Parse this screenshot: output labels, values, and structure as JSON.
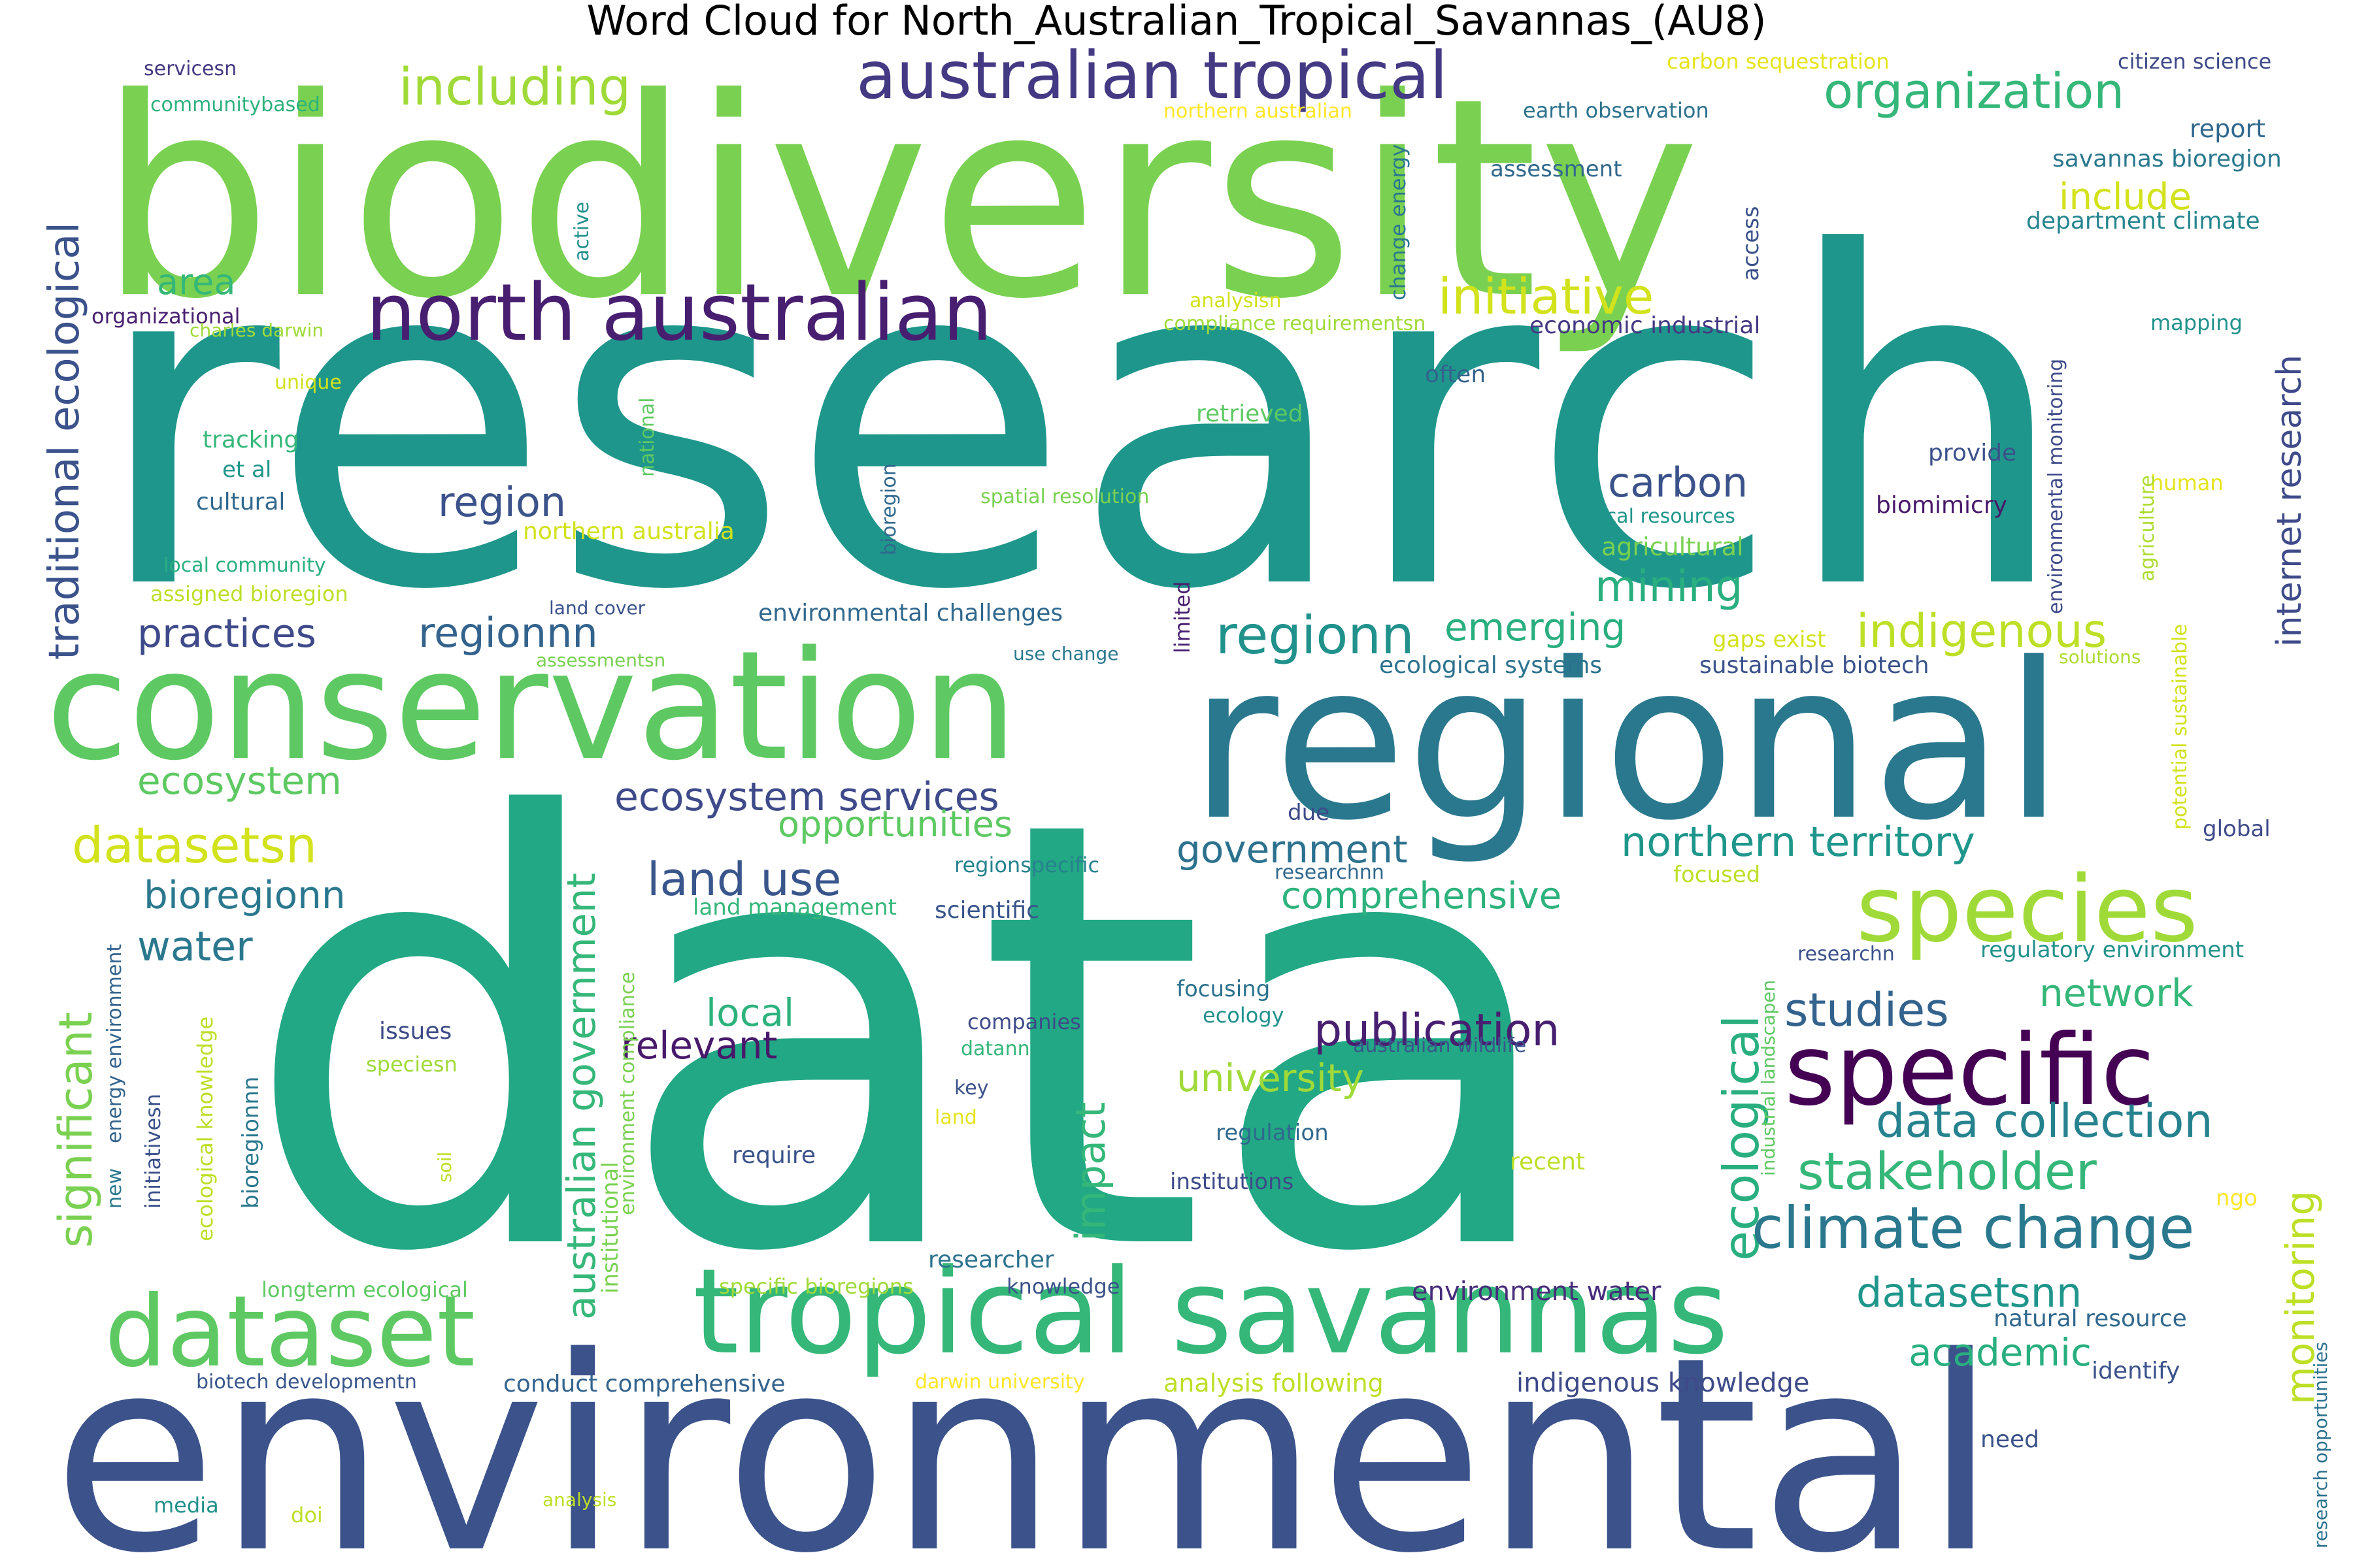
{
  "title": "Word Cloud for North_Australian_Tropical_Savannas_(AU8)",
  "words": [
    {
      "text": "data",
      "color": "#22a884"
    },
    {
      "text": "research",
      "color": "#1f968b"
    },
    {
      "text": "environmental",
      "color": "#3b528b"
    },
    {
      "text": "biodiversity",
      "color": "#7ad151"
    },
    {
      "text": "regional",
      "color": "#2a788e"
    },
    {
      "text": "conservation",
      "color": "#5ec962"
    },
    {
      "text": "tropical savannas",
      "color": "#35b779"
    },
    {
      "text": "specific",
      "color": "#440154"
    },
    {
      "text": "dataset",
      "color": "#5ec962"
    },
    {
      "text": "species",
      "color": "#a0da39"
    },
    {
      "text": "north australian",
      "color": "#481f70"
    },
    {
      "text": "australian tropical",
      "color": "#443983"
    },
    {
      "text": "ecological",
      "color": "#29af7f"
    },
    {
      "text": "climate change",
      "color": "#2a788e"
    },
    {
      "text": "traditional ecological",
      "color": "#3b528b"
    },
    {
      "text": "australian government",
      "color": "#35b779"
    },
    {
      "text": "significant",
      "color": "#7ad151"
    },
    {
      "text": "monitoring",
      "color": "#bddf26"
    },
    {
      "text": "impact",
      "color": "#35b779"
    },
    {
      "text": "stakeholder",
      "color": "#35b779"
    },
    {
      "text": "publication",
      "color": "#481f70"
    },
    {
      "text": "data collection",
      "color": "#26828e"
    },
    {
      "text": "including",
      "color": "#a0da39"
    },
    {
      "text": "organization",
      "color": "#35b779"
    },
    {
      "text": "initiative",
      "color": "#d2e21b"
    },
    {
      "text": "regionn",
      "color": "#21918c"
    },
    {
      "text": "indigenous",
      "color": "#bddf26"
    },
    {
      "text": "datasetsn",
      "color": "#d2e21b"
    },
    {
      "text": "datasetsnn",
      "color": "#1f968b"
    },
    {
      "text": "studies",
      "color": "#33638d"
    },
    {
      "text": "ecosystem services",
      "color": "#3e4a89"
    },
    {
      "text": "northern territory",
      "color": "#1f968b"
    },
    {
      "text": "land use",
      "color": "#39568c"
    },
    {
      "text": "internet research",
      "color": "#3e4a89"
    },
    {
      "text": "mining",
      "color": "#29af7f"
    },
    {
      "text": "carbon",
      "color": "#3b528b"
    },
    {
      "text": "region",
      "color": "#3b528b"
    },
    {
      "text": "regionnn",
      "color": "#33638d"
    },
    {
      "text": "practices",
      "color": "#3e4a89"
    },
    {
      "text": "emerging",
      "color": "#29af7f"
    },
    {
      "text": "government",
      "color": "#2c728e"
    },
    {
      "text": "comprehensive",
      "color": "#2db27d"
    },
    {
      "text": "opportunities",
      "color": "#5ec962"
    },
    {
      "text": "bioregionn",
      "color": "#2a788e"
    },
    {
      "text": "ecosystem",
      "color": "#5ec962"
    },
    {
      "text": "water",
      "color": "#2a788e"
    },
    {
      "text": "local",
      "color": "#2db27d"
    },
    {
      "text": "relevant",
      "color": "#48186a"
    },
    {
      "text": "university",
      "color": "#a0da39"
    },
    {
      "text": "network",
      "color": "#35b779"
    },
    {
      "text": "academic",
      "color": "#29af7f"
    },
    {
      "text": "area",
      "color": "#35b779"
    },
    {
      "text": "include",
      "color": "#d2e21b"
    },
    {
      "text": "environment water",
      "color": "#472d7b"
    },
    {
      "text": "indigenous knowledge",
      "color": "#3e4a89"
    },
    {
      "text": "conduct comprehensive",
      "color": "#33638d"
    },
    {
      "text": "analysis following",
      "color": "#bddf26"
    },
    {
      "text": "specific bioregions",
      "color": "#a0da39"
    },
    {
      "text": "natural resource",
      "color": "#31688e"
    },
    {
      "text": "servicesn",
      "color": "#443983"
    },
    {
      "text": "communitybased",
      "color": "#2db27d"
    },
    {
      "text": "organizational",
      "color": "#481f70"
    },
    {
      "text": "charles darwin",
      "color": "#a0da39"
    },
    {
      "text": "unique",
      "color": "#d2e21b"
    },
    {
      "text": "tracking",
      "color": "#35b779"
    },
    {
      "text": "et al",
      "color": "#1f968b"
    },
    {
      "text": "cultural",
      "color": "#31688e"
    },
    {
      "text": "local community",
      "color": "#29af7f"
    },
    {
      "text": "assigned bioregion",
      "color": "#bddf26"
    },
    {
      "text": "land cover",
      "color": "#3b528b"
    },
    {
      "text": "assessmentsn",
      "color": "#7ad151"
    },
    {
      "text": "use change",
      "color": "#2a788e"
    },
    {
      "text": "environmental challenges",
      "color": "#31688e"
    },
    {
      "text": "ecological systems",
      "color": "#2c728e"
    },
    {
      "text": "sustainable biotech",
      "color": "#3b528b"
    },
    {
      "text": "gaps exist",
      "color": "#d2e21b"
    },
    {
      "text": "solutions",
      "color": "#addc30"
    },
    {
      "text": "carbon sequestration",
      "color": "#e5e419"
    },
    {
      "text": "citizen science",
      "color": "#3e4a89"
    },
    {
      "text": "northern australian",
      "color": "#fde725"
    },
    {
      "text": "earth observation",
      "color": "#2c728e"
    },
    {
      "text": "report",
      "color": "#31688e"
    },
    {
      "text": "savannas bioregion",
      "color": "#2a788e"
    },
    {
      "text": "assessment",
      "color": "#31688e"
    },
    {
      "text": "department climate",
      "color": "#25858e"
    },
    {
      "text": "analysisn",
      "color": "#d2e21b"
    },
    {
      "text": "compliance requirementsn",
      "color": "#a0da39"
    },
    {
      "text": "economic industrial",
      "color": "#443983"
    },
    {
      "text": "mapping",
      "color": "#21918c"
    },
    {
      "text": "often",
      "color": "#33638d"
    },
    {
      "text": "retrieved",
      "color": "#5ec962"
    },
    {
      "text": "provide",
      "color": "#3b528b"
    },
    {
      "text": "human",
      "color": "#e5e419"
    },
    {
      "text": "spatial resolution",
      "color": "#7ad151"
    },
    {
      "text": "local resources",
      "color": "#1f968b"
    },
    {
      "text": "biomimicry",
      "color": "#48186a"
    },
    {
      "text": "agricultural",
      "color": "#7ad151"
    },
    {
      "text": "northern australia",
      "color": "#d2e21b"
    },
    {
      "text": "global",
      "color": "#3e4a89"
    },
    {
      "text": "due",
      "color": "#3e4a89"
    },
    {
      "text": "regionspecific",
      "color": "#26828e"
    },
    {
      "text": "researchnn",
      "color": "#31688e"
    },
    {
      "text": "focused",
      "color": "#bddf26"
    },
    {
      "text": "land management",
      "color": "#35b779"
    },
    {
      "text": "scientific",
      "color": "#39568c"
    },
    {
      "text": "researchn",
      "color": "#3b528b"
    },
    {
      "text": "regulatory environment",
      "color": "#21918c"
    },
    {
      "text": "focusing",
      "color": "#2c728e"
    },
    {
      "text": "ecology",
      "color": "#21918c"
    },
    {
      "text": "companies",
      "color": "#3e4a89"
    },
    {
      "text": "datann",
      "color": "#35b779"
    },
    {
      "text": "australian wildlife",
      "color": "#39568c"
    },
    {
      "text": "issues",
      "color": "#3e4a89"
    },
    {
      "text": "speciesn",
      "color": "#a0da39"
    },
    {
      "text": "key",
      "color": "#3b528b"
    },
    {
      "text": "land",
      "color": "#e5e419"
    },
    {
      "text": "regulation",
      "color": "#31688e"
    },
    {
      "text": "require",
      "color": "#3b528b"
    },
    {
      "text": "recent",
      "color": "#bddf26"
    },
    {
      "text": "institutions",
      "color": "#3e4a89"
    },
    {
      "text": "ngo",
      "color": "#fde725"
    },
    {
      "text": "researcher",
      "color": "#2c728e"
    },
    {
      "text": "knowledge",
      "color": "#3b528b"
    },
    {
      "text": "longterm ecological",
      "color": "#5ec962"
    },
    {
      "text": "biotech developmentn",
      "color": "#39568c"
    },
    {
      "text": "darwin university",
      "color": "#fde725"
    },
    {
      "text": "identify",
      "color": "#3b528b"
    },
    {
      "text": "need",
      "color": "#3b528b"
    },
    {
      "text": "media",
      "color": "#21918c"
    },
    {
      "text": "doi",
      "color": "#bddf26"
    },
    {
      "text": "analysis",
      "color": "#bddf26"
    },
    {
      "text": "new",
      "color": "#2a788e"
    },
    {
      "text": "energy environment",
      "color": "#33638d"
    },
    {
      "text": "ecological knowledge",
      "color": "#bddf26"
    },
    {
      "text": "bioregionnn",
      "color": "#2a788e"
    },
    {
      "text": "initiativesn",
      "color": "#3b528b"
    },
    {
      "text": "soil",
      "color": "#bddf26"
    },
    {
      "text": "institutional",
      "color": "#7ad151"
    },
    {
      "text": "environment compliance",
      "color": "#7ad151"
    },
    {
      "text": "industrial landscapen",
      "color": "#5ec962"
    },
    {
      "text": "research opportunities",
      "color": "#2c728e"
    },
    {
      "text": "potential sustainable",
      "color": "#d2e21b"
    },
    {
      "text": "agriculture",
      "color": "#addc30"
    },
    {
      "text": "environmental monitoring",
      "color": "#3e4a89"
    },
    {
      "text": "change energy",
      "color": "#2a788e"
    },
    {
      "text": "access",
      "color": "#3b528b"
    },
    {
      "text": "active",
      "color": "#21918c"
    },
    {
      "text": "national",
      "color": "#5ec962"
    },
    {
      "text": "bioregion",
      "color": "#31688e"
    },
    {
      "text": "limited",
      "color": "#481f70"
    }
  ]
}
